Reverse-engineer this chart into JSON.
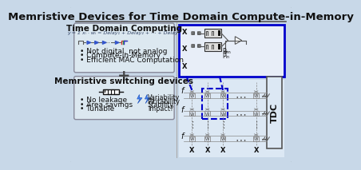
{
  "title": "Memristive Devices for Time Domain Compute-in-Memory",
  "bg_outer": "#c8d8e8",
  "blue_box_color": "#0000cc",
  "text_color": "#111111",
  "title_fontsize": 9.5,
  "subtitle_fontsize": 7.5,
  "body_fontsize": 6.5,
  "tdc_label": "TDC",
  "time_domain_title": "Time Domain Computing",
  "time_domain_formula": "y = Σ xᵢ · wᵢ = Delay₁ + Delay₂ + ⋯ + Delayₙ",
  "bullet_points_top": [
    "Not digital, not analog",
    "Compute-in-Memory",
    "Efficient MAC Computation"
  ],
  "memristive_title": "Memristive switching devices",
  "bullet_points_bot": [
    "No leakage",
    "Area savings",
    "Tunable"
  ],
  "variability_text": [
    "Variability",
    "Writability",
    "Stability",
    "Impact?"
  ],
  "pen_label": "Pₑₙ",
  "pin_label": "Pᵢₙ",
  "triangle_color": "#3355cc",
  "ramp_colors": [
    "#cc3333",
    "#33aa33",
    "#3333cc"
  ]
}
